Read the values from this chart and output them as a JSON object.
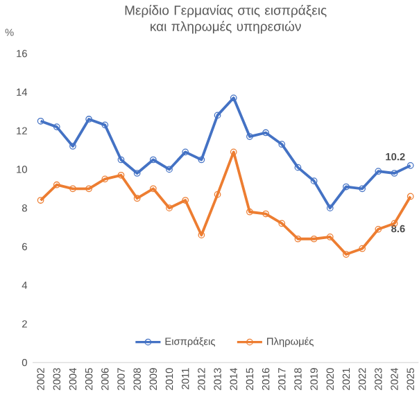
{
  "chart_data": {
    "type": "line",
    "title": "Μερίδιο Γερμανίας στις εισπράξεις και πληρωμές υπηρεσιών",
    "ylabel": "%",
    "categories": [
      "2002",
      "2003",
      "2004",
      "2005",
      "2006",
      "2007",
      "2008",
      "2009",
      "2010",
      "2011",
      "2012",
      "2013",
      "2014",
      "2015",
      "2016",
      "2017",
      "2018",
      "2019",
      "2020",
      "2021",
      "2022",
      "2023",
      "2024",
      "2025"
    ],
    "series": [
      {
        "name": "Εισπράξεις",
        "color": "#4472c4",
        "values": [
          12.5,
          12.2,
          11.2,
          12.6,
          12.3,
          10.5,
          9.8,
          10.5,
          10.0,
          10.9,
          10.5,
          12.8,
          13.7,
          11.7,
          11.9,
          11.3,
          10.1,
          9.4,
          8.0,
          9.1,
          9.0,
          9.9,
          9.8,
          10.2
        ]
      },
      {
        "name": "Πληρωμές",
        "color": "#ed7d31",
        "values": [
          8.4,
          9.2,
          9.0,
          9.0,
          9.5,
          9.7,
          8.5,
          9.0,
          8.0,
          8.4,
          6.6,
          8.7,
          10.9,
          7.8,
          7.7,
          7.2,
          6.4,
          6.4,
          6.5,
          5.6,
          5.9,
          6.9,
          7.2,
          8.6
        ]
      }
    ],
    "annotations": [
      {
        "text": "10.2",
        "x": "2025",
        "y": 10.2
      },
      {
        "text": "8.6",
        "x": "2025",
        "y": 8.6
      }
    ],
    "ylim": [
      0,
      16
    ],
    "yticks": [
      0,
      2,
      4,
      6,
      8,
      10,
      12,
      14,
      16
    ],
    "legend": "bottom",
    "marker": "circle",
    "line_style": "solid"
  }
}
